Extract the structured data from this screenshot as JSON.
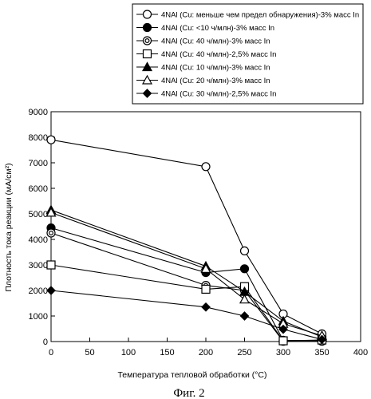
{
  "chart_data": {
    "type": "line",
    "xlabel": "Температура тепловой обработки (°C)",
    "ylabel": "Плотность тока реакции (мА/см²)",
    "xlim": [
      0,
      400
    ],
    "ylim": [
      0,
      9000
    ],
    "xticks": [
      "0",
      "50",
      "100",
      "150",
      "200",
      "250",
      "300",
      "350",
      "400"
    ],
    "yticks": [
      "0",
      "1000",
      "2000",
      "3000",
      "4000",
      "5000",
      "6000",
      "7000",
      "8000",
      "9000"
    ],
    "grid": false,
    "legend_position": "top-right",
    "series": [
      {
        "name": "4NAl (Cu: меньше чем предел обнаружения)-3% масс In",
        "marker": "circle-open",
        "points": [
          [
            0,
            7900
          ],
          [
            200,
            6850
          ],
          [
            250,
            3550
          ],
          [
            300,
            1080
          ],
          [
            350,
            300
          ]
        ]
      },
      {
        "name": "4NAl (Cu: <10 ч/млн)-3% масс In",
        "marker": "circle-filled",
        "points": [
          [
            0,
            4450
          ],
          [
            200,
            2700
          ],
          [
            250,
            2850
          ],
          [
            300,
            50
          ],
          [
            350,
            30
          ]
        ]
      },
      {
        "name": "4NAl (Cu: 40 ч/млн)-3% масс In",
        "marker": "double-circle",
        "points": [
          [
            0,
            4250
          ],
          [
            200,
            2200
          ],
          [
            250,
            2000
          ],
          [
            300,
            10
          ],
          [
            350,
            10
          ]
        ]
      },
      {
        "name": "4NAl (Cu: 40 ч/млн)-2,5% масс In",
        "marker": "square-open",
        "points": [
          [
            0,
            3000
          ],
          [
            200,
            2050
          ],
          [
            250,
            2150
          ],
          [
            300,
            30
          ],
          [
            350,
            60
          ]
        ]
      },
      {
        "name": "4NAl (Cu: 10 ч/млн)-3% масс In",
        "marker": "triangle-filled",
        "points": [
          [
            0,
            5150
          ],
          [
            200,
            2950
          ],
          [
            250,
            1950
          ],
          [
            300,
            800
          ],
          [
            350,
            180
          ]
        ]
      },
      {
        "name": "4NAl (Cu: 20 ч/млн)-3% масс In",
        "marker": "triangle-open",
        "points": [
          [
            0,
            5050
          ],
          [
            200,
            2850
          ],
          [
            250,
            1650
          ],
          [
            300,
            700
          ],
          [
            350,
            230
          ]
        ]
      },
      {
        "name": "4NAl (Cu: 30 ч/млн)-2,5% масс In",
        "marker": "diamond-filled",
        "points": [
          [
            0,
            2000
          ],
          [
            200,
            1350
          ],
          [
            250,
            1000
          ],
          [
            300,
            480
          ],
          [
            350,
            80
          ]
        ]
      }
    ]
  },
  "figure_caption": "Фиг. 2"
}
